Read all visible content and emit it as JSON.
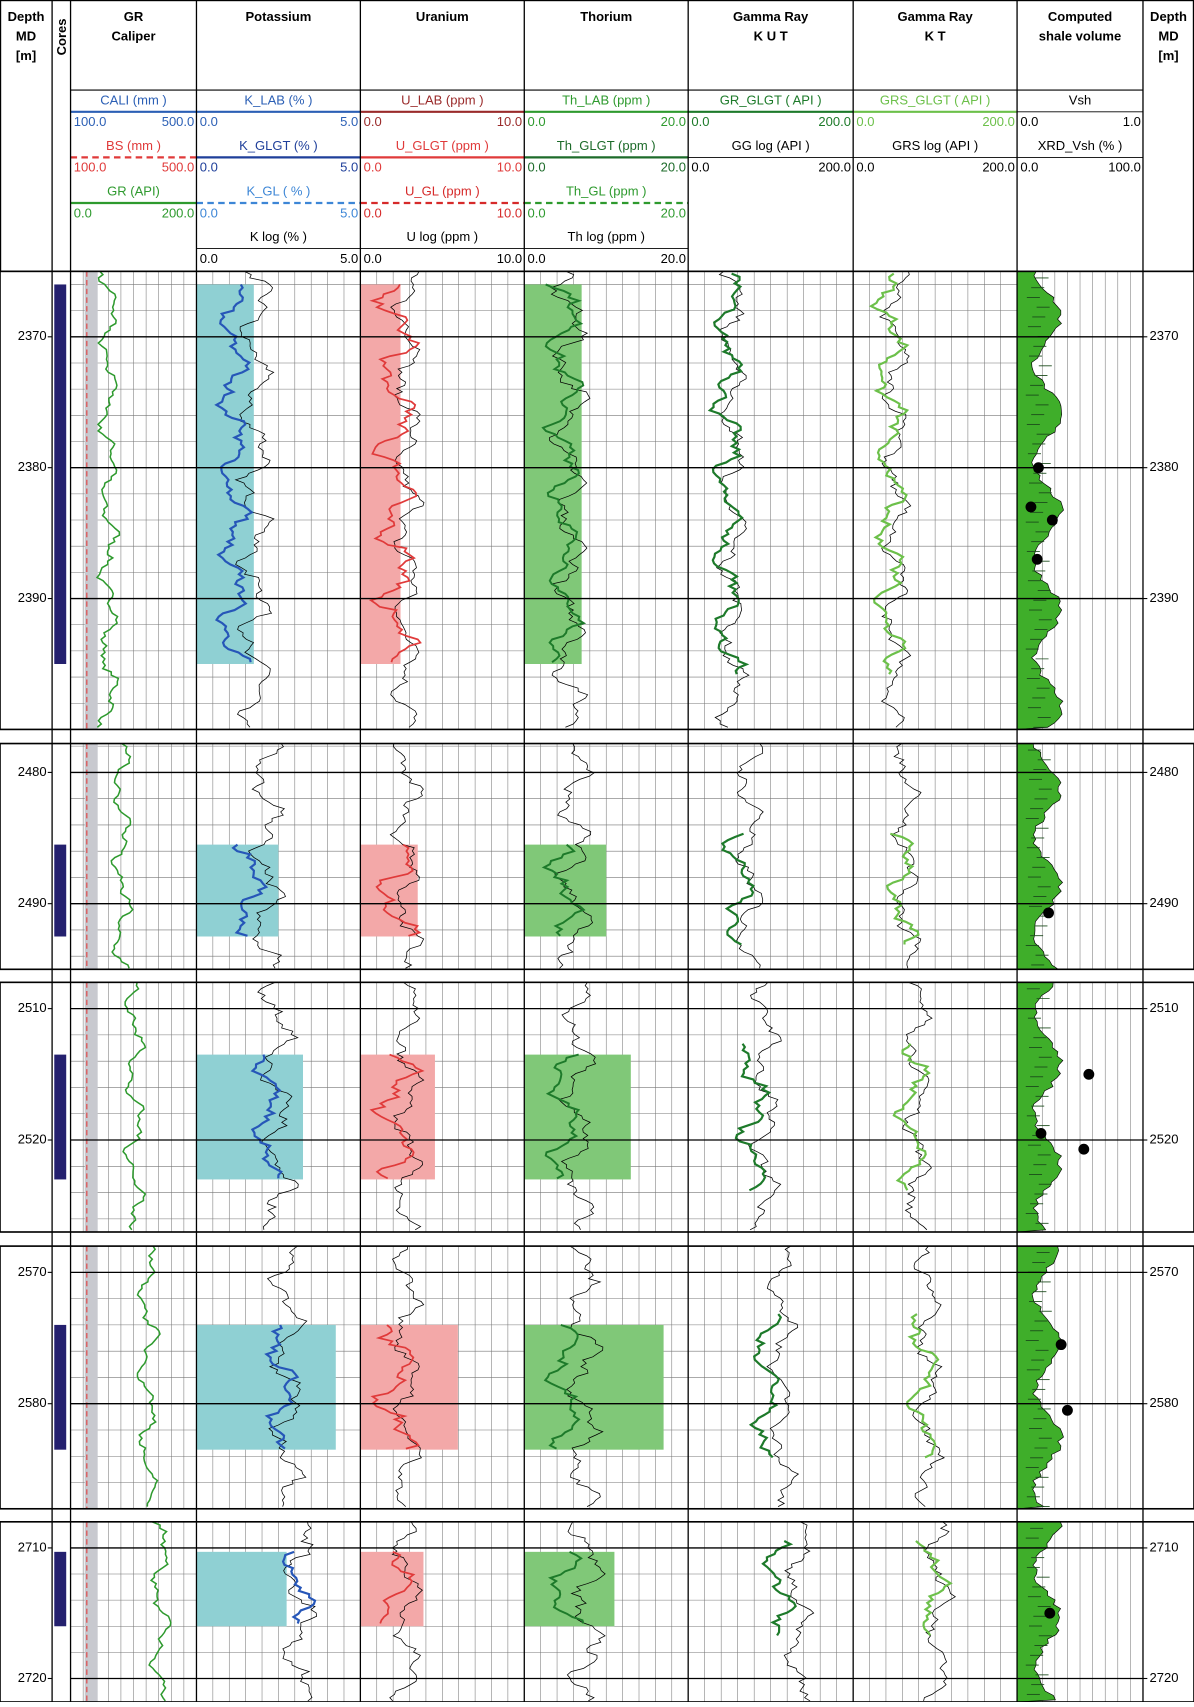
{
  "header": {
    "columns": [
      {
        "lines": [
          "Depth",
          "MD",
          "[m]"
        ]
      },
      {
        "lines": [
          "Cores"
        ]
      },
      {
        "lines": [
          "GR",
          "Caliper"
        ]
      },
      {
        "lines": [
          "Potassium"
        ]
      },
      {
        "lines": [
          "Uranium"
        ]
      },
      {
        "lines": [
          "Thorium"
        ]
      },
      {
        "lines": [
          "Gamma Ray",
          "K U T"
        ]
      },
      {
        "lines": [
          "Gamma Ray",
          "K T"
        ]
      },
      {
        "lines": [
          "Computed",
          "shale volume"
        ]
      },
      {
        "lines": [
          "Depth",
          "MD",
          "[m]"
        ]
      }
    ]
  },
  "scales": [
    [
      {
        "name": "CALI (mm )",
        "min": "100.0",
        "max": "500.0",
        "color": "#2b5fb5",
        "dash": false
      },
      {
        "name": "BS (mm )",
        "min": "100.0",
        "max": "500.0",
        "color": "#e03a3a",
        "dash": true
      },
      {
        "name": "GR (API)",
        "min": "0.0",
        "max": "200.0",
        "color": "#2e9a2e",
        "dash": false
      }
    ],
    [
      {
        "name": "K_LAB (% )",
        "min": "0.0",
        "max": "5.0",
        "color": "#2b5fb5",
        "dash": false
      },
      {
        "name": "K_GLGT (% )",
        "min": "0.0",
        "max": "5.0",
        "color": "#1f3f9a",
        "dash": false
      },
      {
        "name": "K_GL ( % )",
        "min": "0.0",
        "max": "5.0",
        "color": "#3d86d6",
        "dash": true
      },
      {
        "name": "K log (% )",
        "min": "0.0",
        "max": "5.0",
        "color": "#000000",
        "dash": false
      }
    ],
    [
      {
        "name": "U_LAB (ppm )",
        "min": "0.0",
        "max": "10.0",
        "color": "#9a2a2a",
        "dash": false
      },
      {
        "name": "U_GLGT (ppm )",
        "min": "0.0",
        "max": "10.0",
        "color": "#e03a3a",
        "dash": false
      },
      {
        "name": "U_GL (ppm )",
        "min": "0.0",
        "max": "10.0",
        "color": "#d62a2a",
        "dash": true
      },
      {
        "name": "U log (ppm )",
        "min": "0.0",
        "max": "10.0",
        "color": "#000000",
        "dash": false
      }
    ],
    [
      {
        "name": "Th_LAB (ppm )",
        "min": "0.0",
        "max": "20.0",
        "color": "#2e9a2e",
        "dash": false
      },
      {
        "name": "Th_GLGT (ppm )",
        "min": "0.0",
        "max": "20.0",
        "color": "#1d6b2a",
        "dash": false
      },
      {
        "name": "Th_GL (ppm )",
        "min": "0.0",
        "max": "20.0",
        "color": "#2e9a2e",
        "dash": true
      },
      {
        "name": "Th log (ppm )",
        "min": "0.0",
        "max": "20.0",
        "color": "#000000",
        "dash": false
      }
    ],
    [
      {
        "name": "GR_GLGT ( API )",
        "min": "0.0",
        "max": "200.0",
        "color": "#1d7a2a",
        "dash": false
      },
      {
        "name": "GG log (API )",
        "min": "0.0",
        "max": "200.0",
        "color": "#000000",
        "dash": false
      }
    ],
    [
      {
        "name": "GRS_GLGT ( API )",
        "min": "0.0",
        "max": "200.0",
        "color": "#6cc04a",
        "dash": false
      },
      {
        "name": "GRS log (API )",
        "min": "0.0",
        "max": "200.0",
        "color": "#000000",
        "dash": false
      }
    ],
    [
      {
        "name": "Vsh",
        "min": "0.0",
        "max": "1.0",
        "color": "#000000",
        "dash": false
      },
      {
        "name": "XRD_Vsh (% )",
        "min": "0.0",
        "max": "100.0",
        "color": "#000000",
        "dash": false
      }
    ]
  ],
  "panels": [
    {
      "ylim": [
        2365,
        2400
      ],
      "yticks": [
        2370,
        2380,
        2390
      ],
      "core": [
        2366,
        2395
      ],
      "xrd_vsh": [
        {
          "depth": 2380,
          "value": 17
        },
        {
          "depth": 2383,
          "value": 11
        },
        {
          "depth": 2384,
          "value": 28
        },
        {
          "depth": 2387,
          "value": 16
        }
      ]
    },
    {
      "ylim": [
        2477.8,
        2495
      ],
      "yticks": [
        2480,
        2490
      ],
      "core": [
        2485.5,
        2492.5
      ],
      "xrd_vsh": [
        {
          "depth": 2490.7,
          "value": 25
        }
      ]
    },
    {
      "ylim": [
        2508,
        2527
      ],
      "yticks": [
        2510,
        2520
      ],
      "core": [
        2513.5,
        2523
      ],
      "xrd_vsh": [
        {
          "depth": 2515,
          "value": 57
        },
        {
          "depth": 2519.5,
          "value": 19
        },
        {
          "depth": 2520.7,
          "value": 53
        }
      ]
    },
    {
      "ylim": [
        2568,
        2588
      ],
      "yticks": [
        2570,
        2580
      ],
      "core": [
        2574,
        2583.5
      ],
      "xrd_vsh": [
        {
          "depth": 2575.5,
          "value": 35
        },
        {
          "depth": 2580.5,
          "value": 40
        }
      ]
    },
    {
      "ylim": [
        2708,
        2721.8
      ],
      "yticks": [
        2710,
        2720
      ],
      "core": [
        2710.3,
        2716
      ],
      "xrd_vsh": [
        {
          "depth": 2715,
          "value": 26
        }
      ]
    }
  ]
}
